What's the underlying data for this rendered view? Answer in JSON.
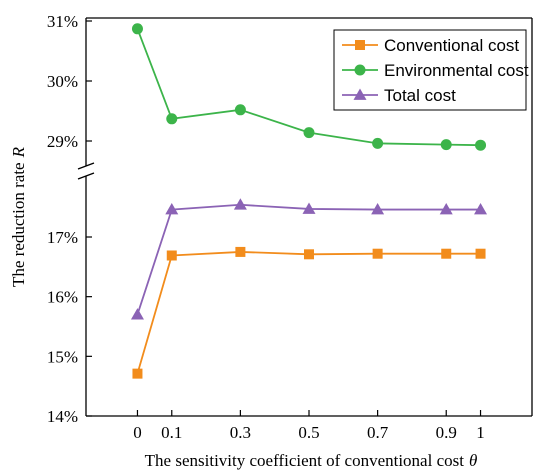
{
  "chart_data": {
    "type": "line",
    "xlabel": "The sensitivity coefficient of conventional cost",
    "xlabel_symbol": "θ",
    "ylabel": "The reduction rate",
    "ylabel_symbol": "R",
    "x": [
      0,
      0.1,
      0.3,
      0.5,
      0.7,
      0.9,
      1
    ],
    "x_tick_labels": [
      "0",
      "0.1",
      "0.3",
      "0.5",
      "0.7",
      "0.9",
      "1"
    ],
    "y_axis_break": true,
    "y_upper_ticks": [
      {
        "value": 29,
        "label": "29%"
      },
      {
        "value": 30,
        "label": "30%"
      },
      {
        "value": 31,
        "label": "31%"
      }
    ],
    "y_lower_ticks": [
      {
        "value": 14,
        "label": "14%"
      },
      {
        "value": 15,
        "label": "15%"
      },
      {
        "value": 16,
        "label": "16%"
      },
      {
        "value": 17,
        "label": "17%"
      }
    ],
    "legend_position": "top-right",
    "series": [
      {
        "name": "Conventional cost",
        "marker": "square",
        "color": "#f28c1c",
        "values": [
          14.71,
          16.69,
          16.75,
          16.71,
          16.72,
          16.72,
          16.72
        ]
      },
      {
        "name": "Environmental cost",
        "marker": "circle",
        "color": "#3cb44a",
        "values": [
          30.87,
          29.37,
          29.52,
          29.14,
          28.96,
          28.94,
          28.93
        ]
      },
      {
        "name": "Total cost",
        "marker": "triangle",
        "color": "#8b63b5",
        "values": [
          15.7,
          17.46,
          17.54,
          17.47,
          17.46,
          17.46,
          17.46
        ]
      }
    ]
  }
}
